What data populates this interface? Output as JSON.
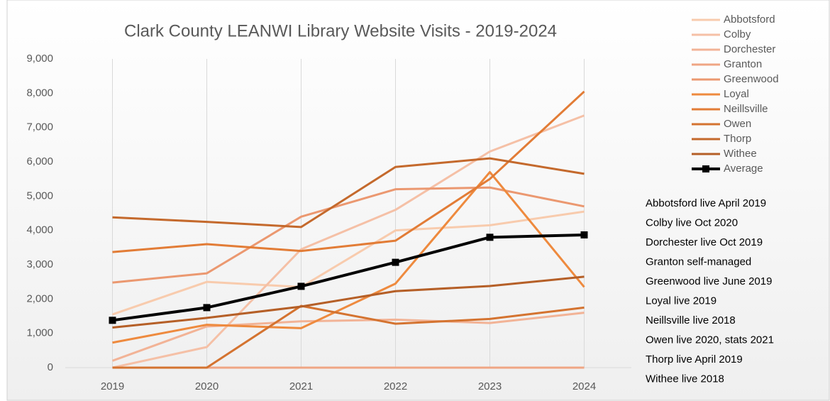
{
  "chart_data": {
    "type": "line",
    "title": "Clark County LEANWI Library Website Visits - 2019-2024",
    "categories": [
      "2019",
      "2020",
      "2021",
      "2022",
      "2023",
      "2024"
    ],
    "series": [
      {
        "name": "Abbotsford",
        "color": "#f8cbad",
        "values": [
          1550,
          2500,
          2350,
          4000,
          4150,
          4550
        ]
      },
      {
        "name": "Colby",
        "color": "#f5c0a6",
        "values": [
          0,
          600,
          3450,
          4600,
          6300,
          7350
        ]
      },
      {
        "name": "Dorchester",
        "color": "#f2b396",
        "values": [
          200,
          1200,
          1350,
          1400,
          1300,
          1600
        ]
      },
      {
        "name": "Granton",
        "color": "#efa584",
        "values": [
          0,
          0,
          0,
          0,
          0,
          0
        ]
      },
      {
        "name": "Greenwood",
        "color": "#eb9870",
        "values": [
          2480,
          2750,
          4400,
          5200,
          5250,
          4700
        ]
      },
      {
        "name": "Loyal",
        "color": "#ee8a3e",
        "values": [
          730,
          1250,
          1150,
          2450,
          5700,
          2350
        ]
      },
      {
        "name": "Neillsville",
        "color": "#e27c36",
        "values": [
          3370,
          3600,
          3400,
          3700,
          5500,
          8050
        ]
      },
      {
        "name": "Owen",
        "color": "#d47330",
        "values": [
          0,
          0,
          1800,
          1280,
          1420,
          1750
        ]
      },
      {
        "name": "Thorp",
        "color": "#c4692c",
        "values": [
          4380,
          4250,
          4100,
          5850,
          6100,
          5650
        ]
      },
      {
        "name": "Withee",
        "color": "#b55f27",
        "values": [
          1170,
          1450,
          1780,
          2230,
          2380,
          2650
        ]
      },
      {
        "name": "Average",
        "color": "#000000",
        "values": [
          1380,
          1750,
          2370,
          3070,
          3800,
          3870
        ]
      }
    ],
    "ylim": [
      0,
      9000
    ],
    "yticks": [
      0,
      {
        "value": 1000,
        "label": "1,000"
      },
      {
        "value": 2000,
        "label": "2,000"
      },
      {
        "value": 3000,
        "label": "3,000"
      },
      {
        "value": 4000,
        "label": "4,000"
      },
      {
        "value": 5000,
        "label": "5,000"
      },
      {
        "value": 6000,
        "label": "6,000"
      },
      {
        "value": 7000,
        "label": "7,000"
      },
      {
        "value": 8000,
        "label": "8,000"
      },
      {
        "value": 9000,
        "label": "9,000"
      }
    ],
    "grid": "x",
    "legend": "right",
    "annotations": [
      "Abbotsford live April 2019",
      "Colby live Oct 2020",
      "Dorchester live Oct 2019",
      "Granton self-managed",
      "Greenwood live June 2019",
      "Loyal live 2019",
      "Neillsville live 2018",
      "Owen live 2020, stats 2021",
      "Thorp live April 2019",
      "Withee live 2018"
    ]
  }
}
